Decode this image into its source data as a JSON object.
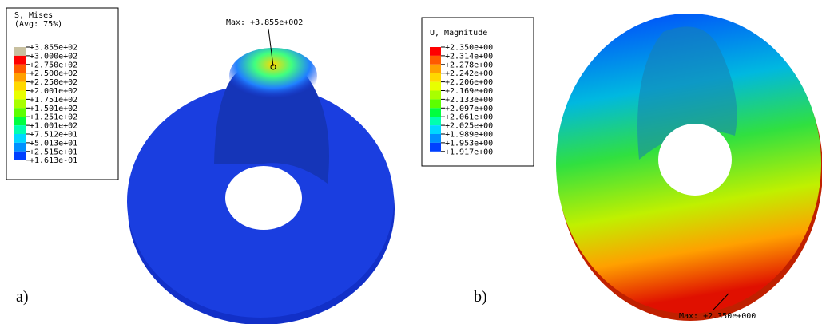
{
  "panels": [
    {
      "panel_label": "a)",
      "legend": {
        "title": [
          "S, Mises",
          "(Avg: 75%)"
        ],
        "labels": [
          "+3.855e+02",
          "+3.000e+02",
          "+2.750e+02",
          "+2.500e+02",
          "+2.250e+02",
          "+2.001e+02",
          "+1.751e+02",
          "+1.501e+02",
          "+1.251e+02",
          "+1.001e+02",
          "+7.512e+01",
          "+5.013e+01",
          "+2.515e+01",
          "+1.613e-01"
        ],
        "colors": [
          "#c8c0a0",
          "#ff0000",
          "#ff5a00",
          "#ffa000",
          "#ffd800",
          "#e8ff00",
          "#a8ff00",
          "#5cff00",
          "#00ff40",
          "#00ffb0",
          "#00d8ff",
          "#0090ff",
          "#0040ff"
        ]
      },
      "max_label": "Max: +3.855e+002"
    },
    {
      "panel_label": "b)",
      "legend": {
        "title": [
          "U, Magnitude"
        ],
        "labels": [
          "+2.350e+00",
          "+2.314e+00",
          "+2.278e+00",
          "+2.242e+00",
          "+2.206e+00",
          "+2.169e+00",
          "+2.133e+00",
          "+2.097e+00",
          "+2.061e+00",
          "+2.025e+00",
          "+1.989e+00",
          "+1.953e+00",
          "+1.917e+00"
        ],
        "colors": [
          "#ff0000",
          "#ff5a00",
          "#ffa000",
          "#ffd800",
          "#e8ff00",
          "#a8ff00",
          "#5cff00",
          "#00ff40",
          "#00ffb0",
          "#00d8ff",
          "#0090ff",
          "#0040ff"
        ]
      },
      "max_label": "Max: +2.350e+000"
    }
  ]
}
